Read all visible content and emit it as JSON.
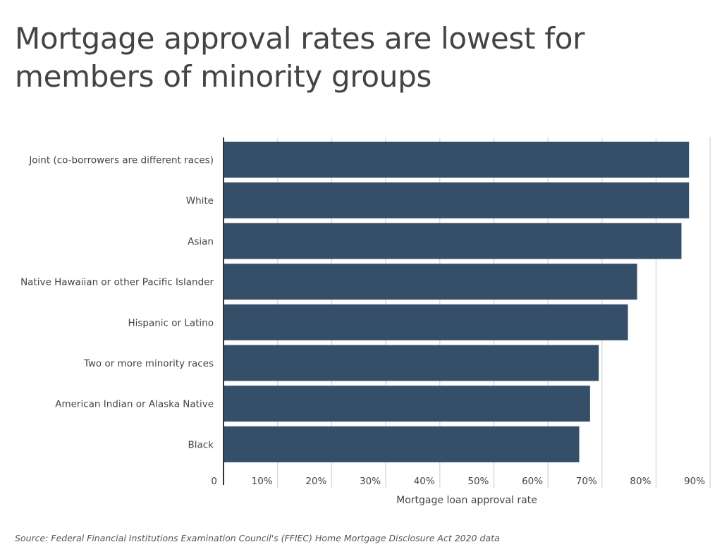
{
  "title": "Mortgage approval rates are lowest for members of minority groups",
  "source": "Source: Federal Financial Institutions Examination Council's (FFIEC) Home Mortgage Disclosure Act 2020 data",
  "chart_data": {
    "type": "bar",
    "orientation": "horizontal",
    "title": "Mortgage approval rates are lowest for members of minority groups",
    "xlabel": "Mortgage loan approval rate",
    "ylabel": "",
    "categories": [
      "Joint (co-borrowers are different races)",
      "White",
      "Asian",
      "Native Hawaiian or other Pacific Islander",
      "Hispanic or Latino",
      "Two or more minority races",
      "American Indian or Alaska Native",
      "Black"
    ],
    "values": [
      86.1,
      86.1,
      84.7,
      76.5,
      74.8,
      69.4,
      67.8,
      65.8
    ],
    "unit": "%",
    "xlim": [
      0,
      90
    ],
    "xticks": [
      0,
      10,
      20,
      30,
      40,
      50,
      60,
      70,
      80,
      90
    ],
    "xtick_labels": [
      "0",
      "10%",
      "20%",
      "30%",
      "40%",
      "50%",
      "60%",
      "70%",
      "80%",
      "90%"
    ],
    "grid": "vertical",
    "legend": "none",
    "bar_color": "#364f69"
  }
}
